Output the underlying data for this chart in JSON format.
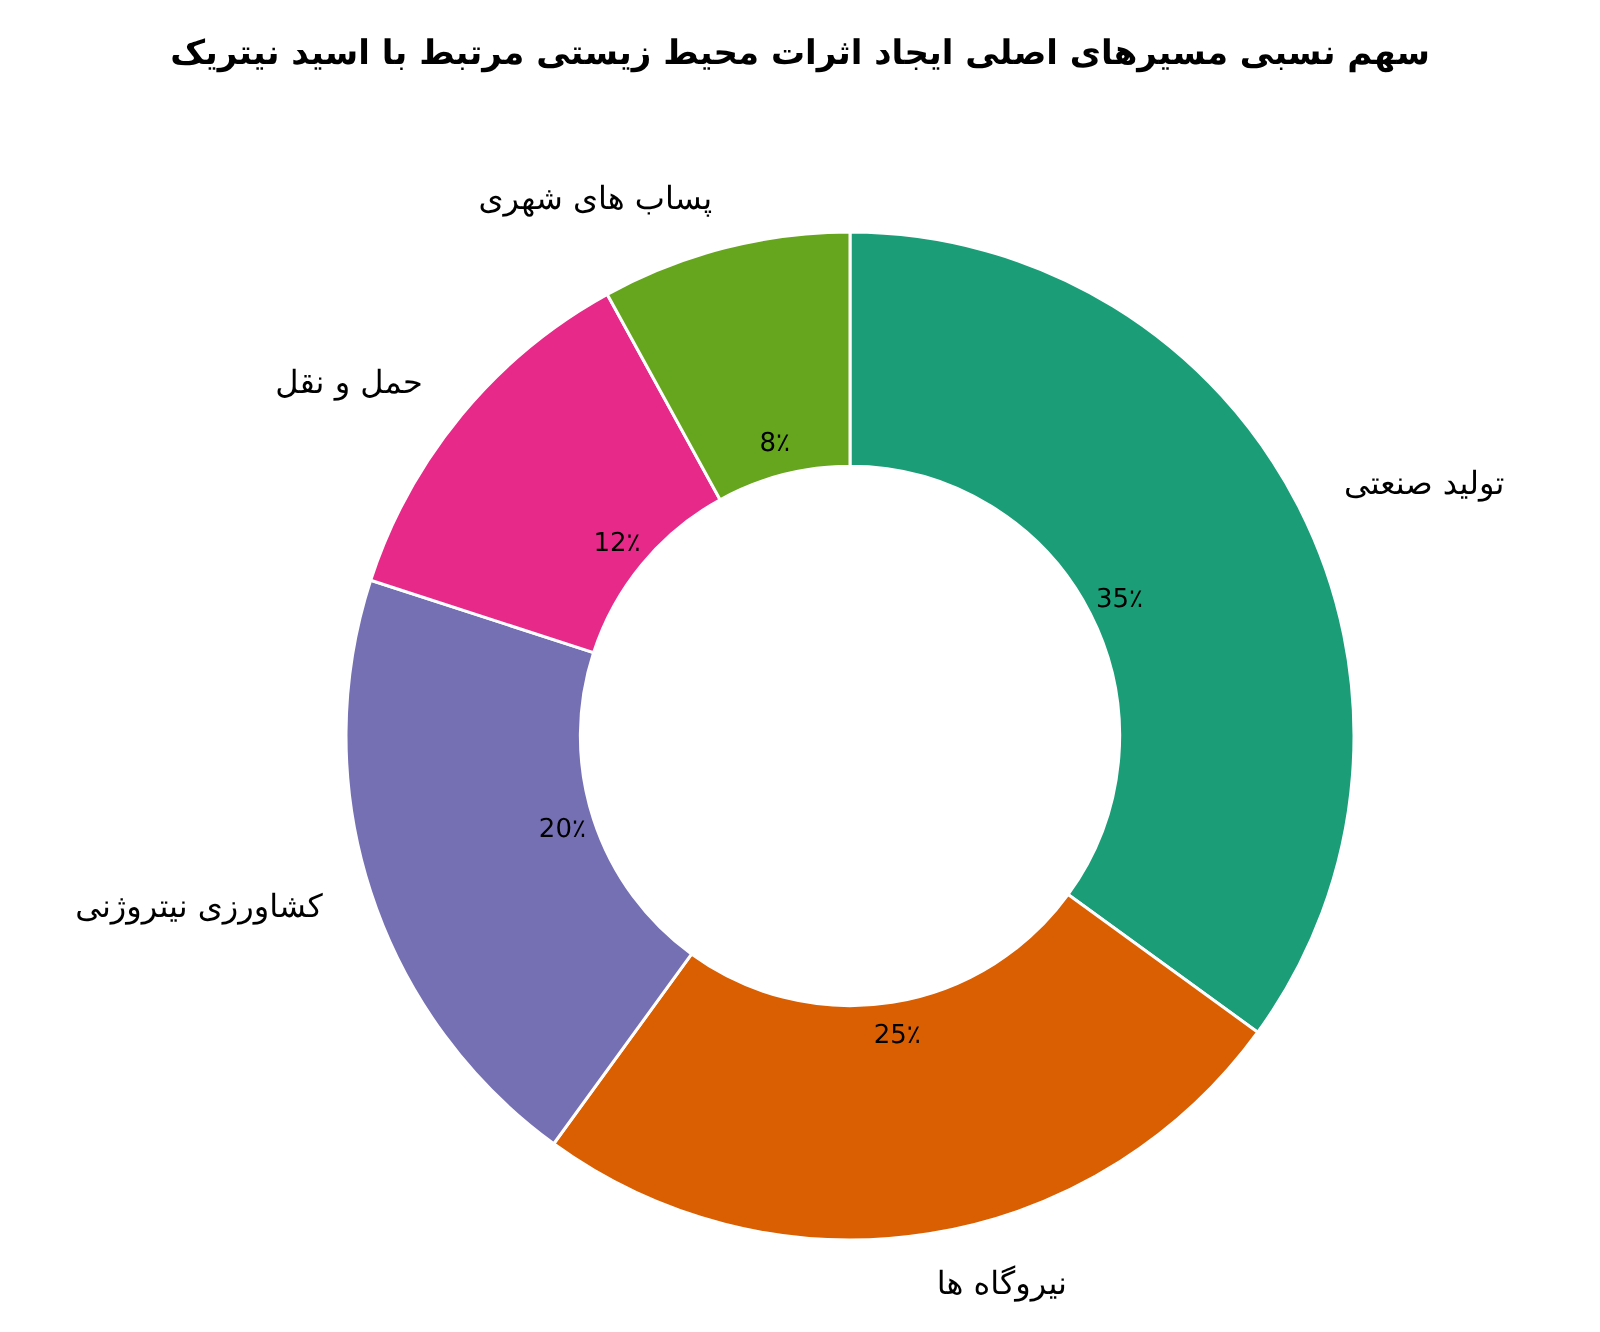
{
  "chart_data": {
    "type": "donut",
    "title": "سهم نسبی مسیرهای اصلی ایجاد اثرات محیط زیستی مرتبط با اسید نیتریک",
    "categories": [
      "تولید صنعتی",
      "نیروگاه ها",
      "کشاورزی نیتروژنی",
      "حمل و نقل",
      "پساب های شهری"
    ],
    "values": [
      35,
      25,
      20,
      12,
      8
    ],
    "colors": [
      "#1b9e77",
      "#d95f02",
      "#7570b3",
      "#e7298a",
      "#66a61e"
    ],
    "value_labels": [
      "35٪",
      "25٪",
      "20٪",
      "12٪",
      "8٪"
    ]
  }
}
